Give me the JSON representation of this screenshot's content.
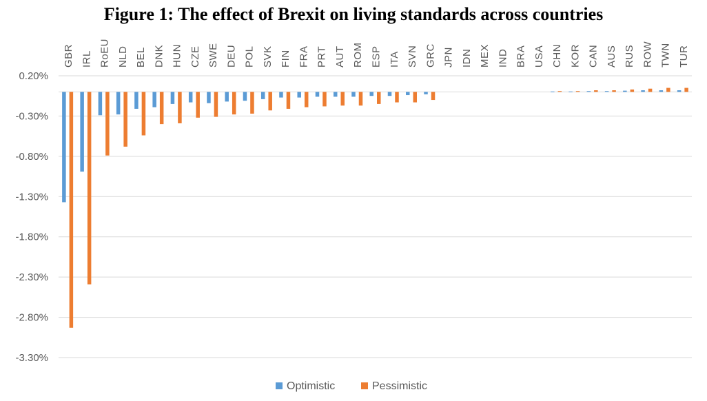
{
  "chart_data": {
    "type": "bar",
    "title": "Figure 1: The effect of Brexit on living standards across countries",
    "categories": [
      "GBR",
      "IRL",
      "RoEU",
      "NLD",
      "BEL",
      "DNK",
      "HUN",
      "CZE",
      "SWE",
      "DEU",
      "POL",
      "SVK",
      "FIN",
      "FRA",
      "PRT",
      "AUT",
      "ROM",
      "ESP",
      "ITA",
      "SVN",
      "GRC",
      "JPN",
      "IDN",
      "MEX",
      "IND",
      "BRA",
      "USA",
      "CHN",
      "KOR",
      "CAN",
      "AUS",
      "RUS",
      "ROW",
      "TWN",
      "TUR"
    ],
    "series": [
      {
        "name": "Optimistic",
        "color": "#5B9BD5",
        "values": [
          -1.37,
          -0.99,
          -0.29,
          -0.28,
          -0.21,
          -0.19,
          -0.15,
          -0.13,
          -0.14,
          -0.12,
          -0.11,
          -0.09,
          -0.07,
          -0.07,
          -0.06,
          -0.06,
          -0.06,
          -0.05,
          -0.05,
          -0.04,
          -0.03,
          0,
          0,
          0,
          0,
          0,
          0,
          0.005,
          0.005,
          0.01,
          0.01,
          0.015,
          0.02,
          0.02,
          0.02
        ]
      },
      {
        "name": "Pessimistic",
        "color": "#ED7D31",
        "values": [
          -2.93,
          -2.39,
          -0.79,
          -0.68,
          -0.54,
          -0.4,
          -0.39,
          -0.32,
          -0.31,
          -0.28,
          -0.27,
          -0.23,
          -0.21,
          -0.19,
          -0.18,
          -0.17,
          -0.17,
          -0.15,
          -0.13,
          -0.13,
          -0.1,
          0,
          0,
          0,
          0,
          0,
          0,
          0.01,
          0.01,
          0.02,
          0.02,
          0.03,
          0.04,
          0.05,
          0.05
        ]
      }
    ],
    "yticks": [
      "0.20%",
      "-0.30%",
      "-0.80%",
      "-1.30%",
      "-1.80%",
      "-2.30%",
      "-2.80%",
      "-3.30%"
    ],
    "ytick_values": [
      0.2,
      -0.3,
      -0.8,
      -1.3,
      -1.8,
      -2.3,
      -2.8,
      -3.3
    ],
    "ylim": [
      -3.3,
      0.2
    ],
    "grid": true,
    "legend_position": "bottom"
  }
}
